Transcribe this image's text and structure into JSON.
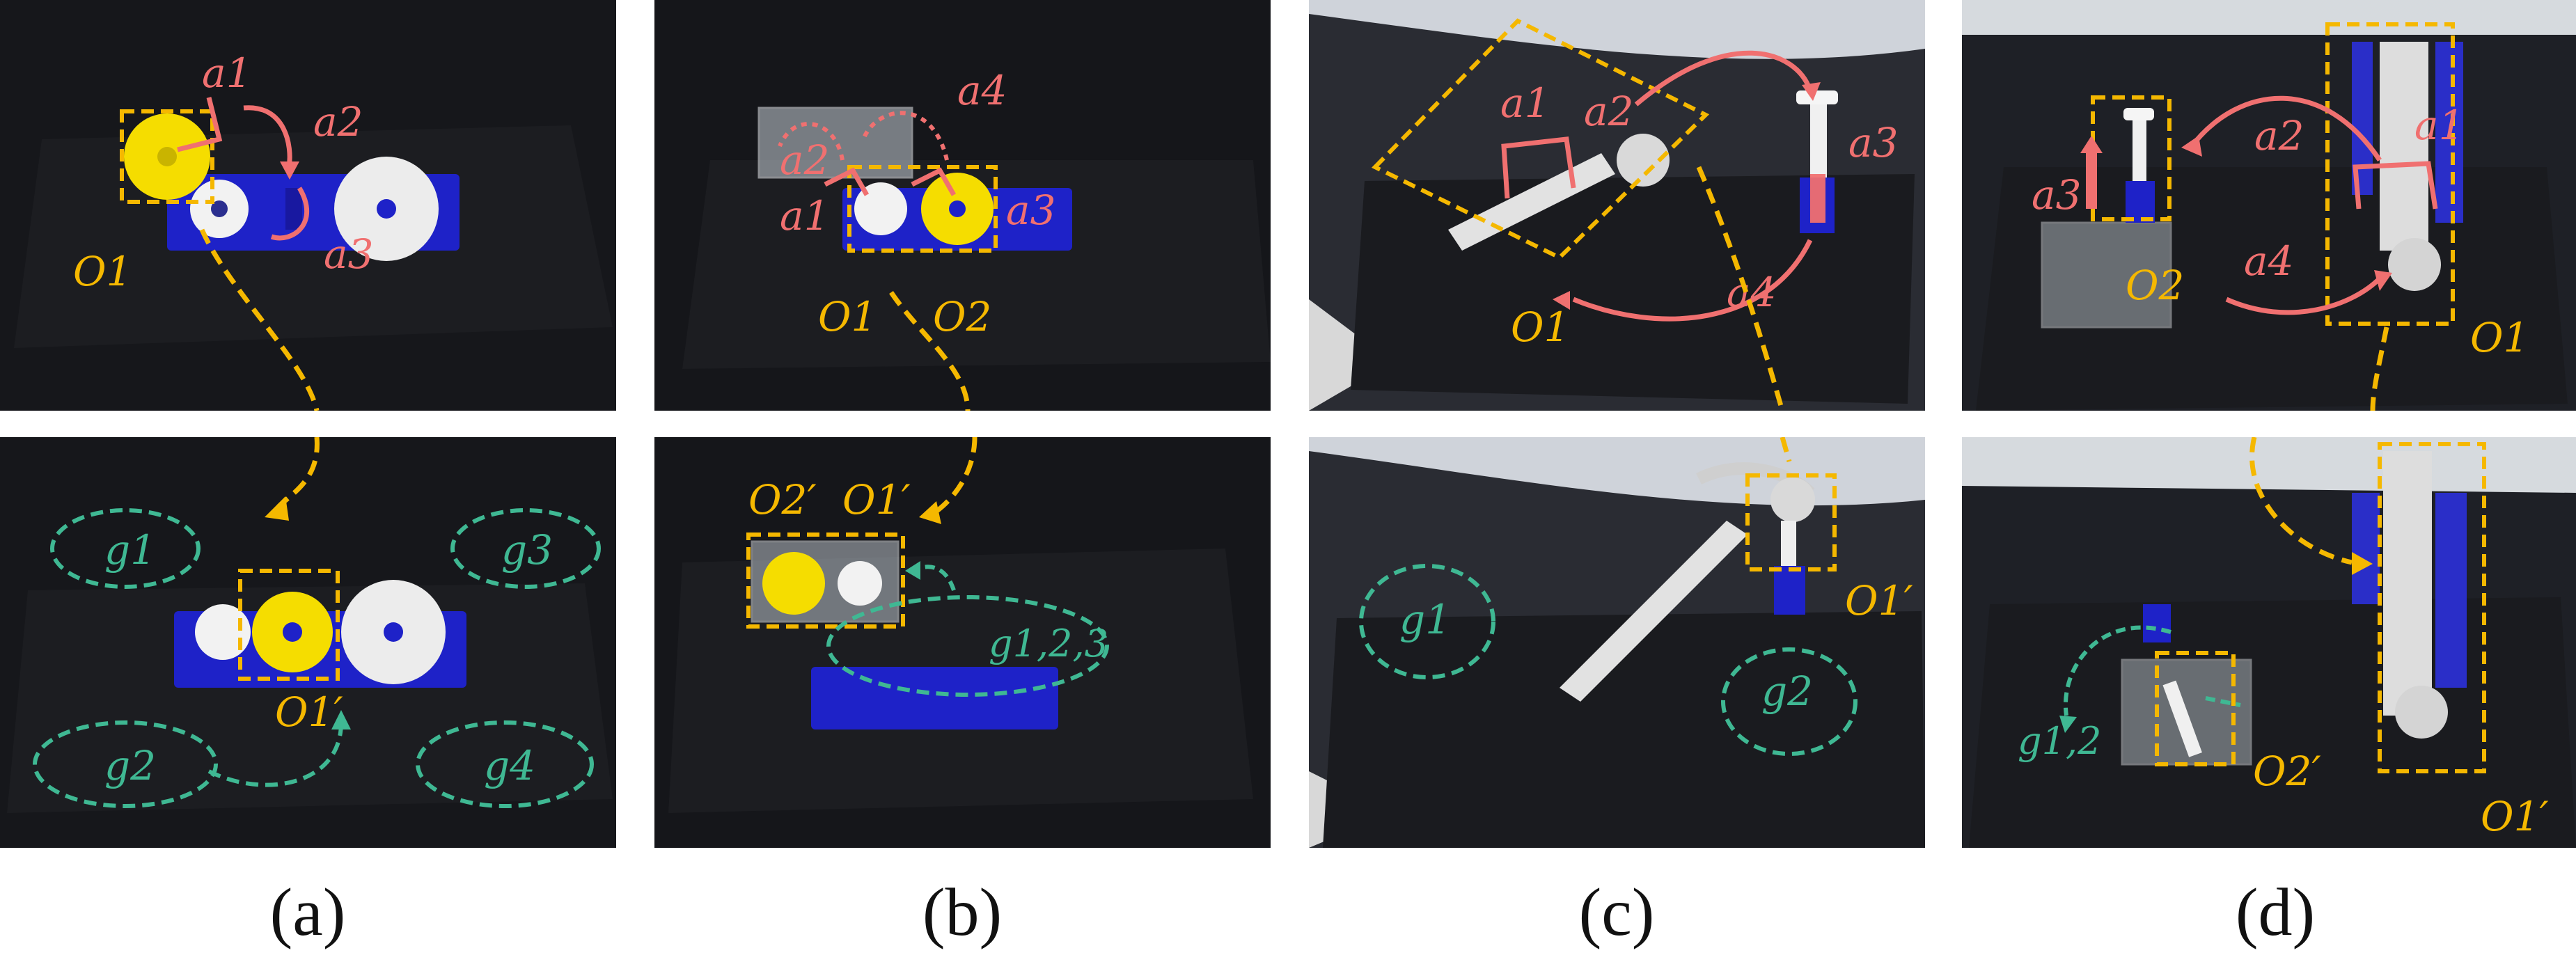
{
  "figure": {
    "panels": [
      {
        "id": "a",
        "caption": "(a)",
        "top_labels": {
          "a1": "a1",
          "a2": "a2",
          "a3": "a3",
          "o1": "O1"
        },
        "bottom_labels": {
          "g1": "g1",
          "g2": "g2",
          "g3": "g3",
          "g4": "g4",
          "o1p": "O1′"
        }
      },
      {
        "id": "b",
        "caption": "(b)",
        "top_labels": {
          "a1": "a1",
          "a2": "a2",
          "a3": "a3",
          "a4": "a4",
          "o1": "O1",
          "o2": "O2"
        },
        "bottom_labels": {
          "o2p": "O2′",
          "o1p": "O1′",
          "g123": "g1,2,3"
        }
      },
      {
        "id": "c",
        "caption": "(c)",
        "top_labels": {
          "a1": "a1",
          "a2": "a2",
          "a3": "a3",
          "a4": "a4",
          "o1": "O1"
        },
        "bottom_labels": {
          "g1": "g1",
          "g2": "g2",
          "o1p": "O1′"
        }
      },
      {
        "id": "d",
        "caption": "(d)",
        "top_labels": {
          "a1": "a1",
          "a2": "a2",
          "a3": "a3",
          "a4": "a4",
          "o1": "O1",
          "o2": "O2"
        },
        "bottom_labels": {
          "g12": "g1,2",
          "o1p": "O1′",
          "o2p": "O2′"
        }
      }
    ],
    "colors": {
      "action": "#f07070",
      "object": "#f5b800",
      "goal": "#3fb893",
      "background": "#141519",
      "board": "#1a1b1f",
      "base_blue": "#1e22c8",
      "gear_yellow": "#f5dd00",
      "gear_white": "#f2f2f2"
    }
  }
}
